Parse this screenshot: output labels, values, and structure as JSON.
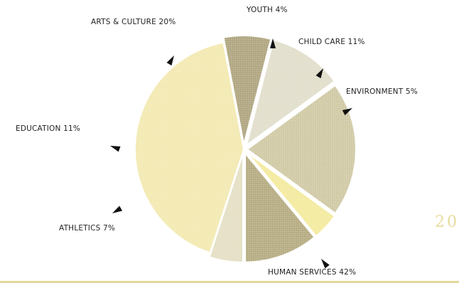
{
  "page": {
    "page_number": "20"
  },
  "chart_data": {
    "type": "pie",
    "slices": [
      {
        "name": "HUMAN SERVICES",
        "value": 42,
        "label": "HUMAN SERVICES 42%",
        "color": "#f3eab4"
      },
      {
        "name": "ATHLETICS",
        "value": 7,
        "label": "ATHLETICS 7%",
        "color": "#b2a884"
      },
      {
        "name": "EDUCATION",
        "value": 11,
        "label": "EDUCATION 11%",
        "color": "#e2dfcd"
      },
      {
        "name": "ARTS & CULTURE",
        "value": 20,
        "label": "ARTS & CULTURE 20%",
        "color": "#d2cba8"
      },
      {
        "name": "YOUTH",
        "value": 4,
        "label": "YOUTH 4%",
        "color": "#f4eba2"
      },
      {
        "name": "CHILD CARE",
        "value": 11,
        "label": "CHILD CARE 11%",
        "color": "#b8ae86"
      },
      {
        "name": "ENVIRONMENT",
        "value": 5,
        "label": "ENVIRONMENT 5%",
        "color": "#e5e0c6"
      }
    ],
    "legend": "none"
  }
}
